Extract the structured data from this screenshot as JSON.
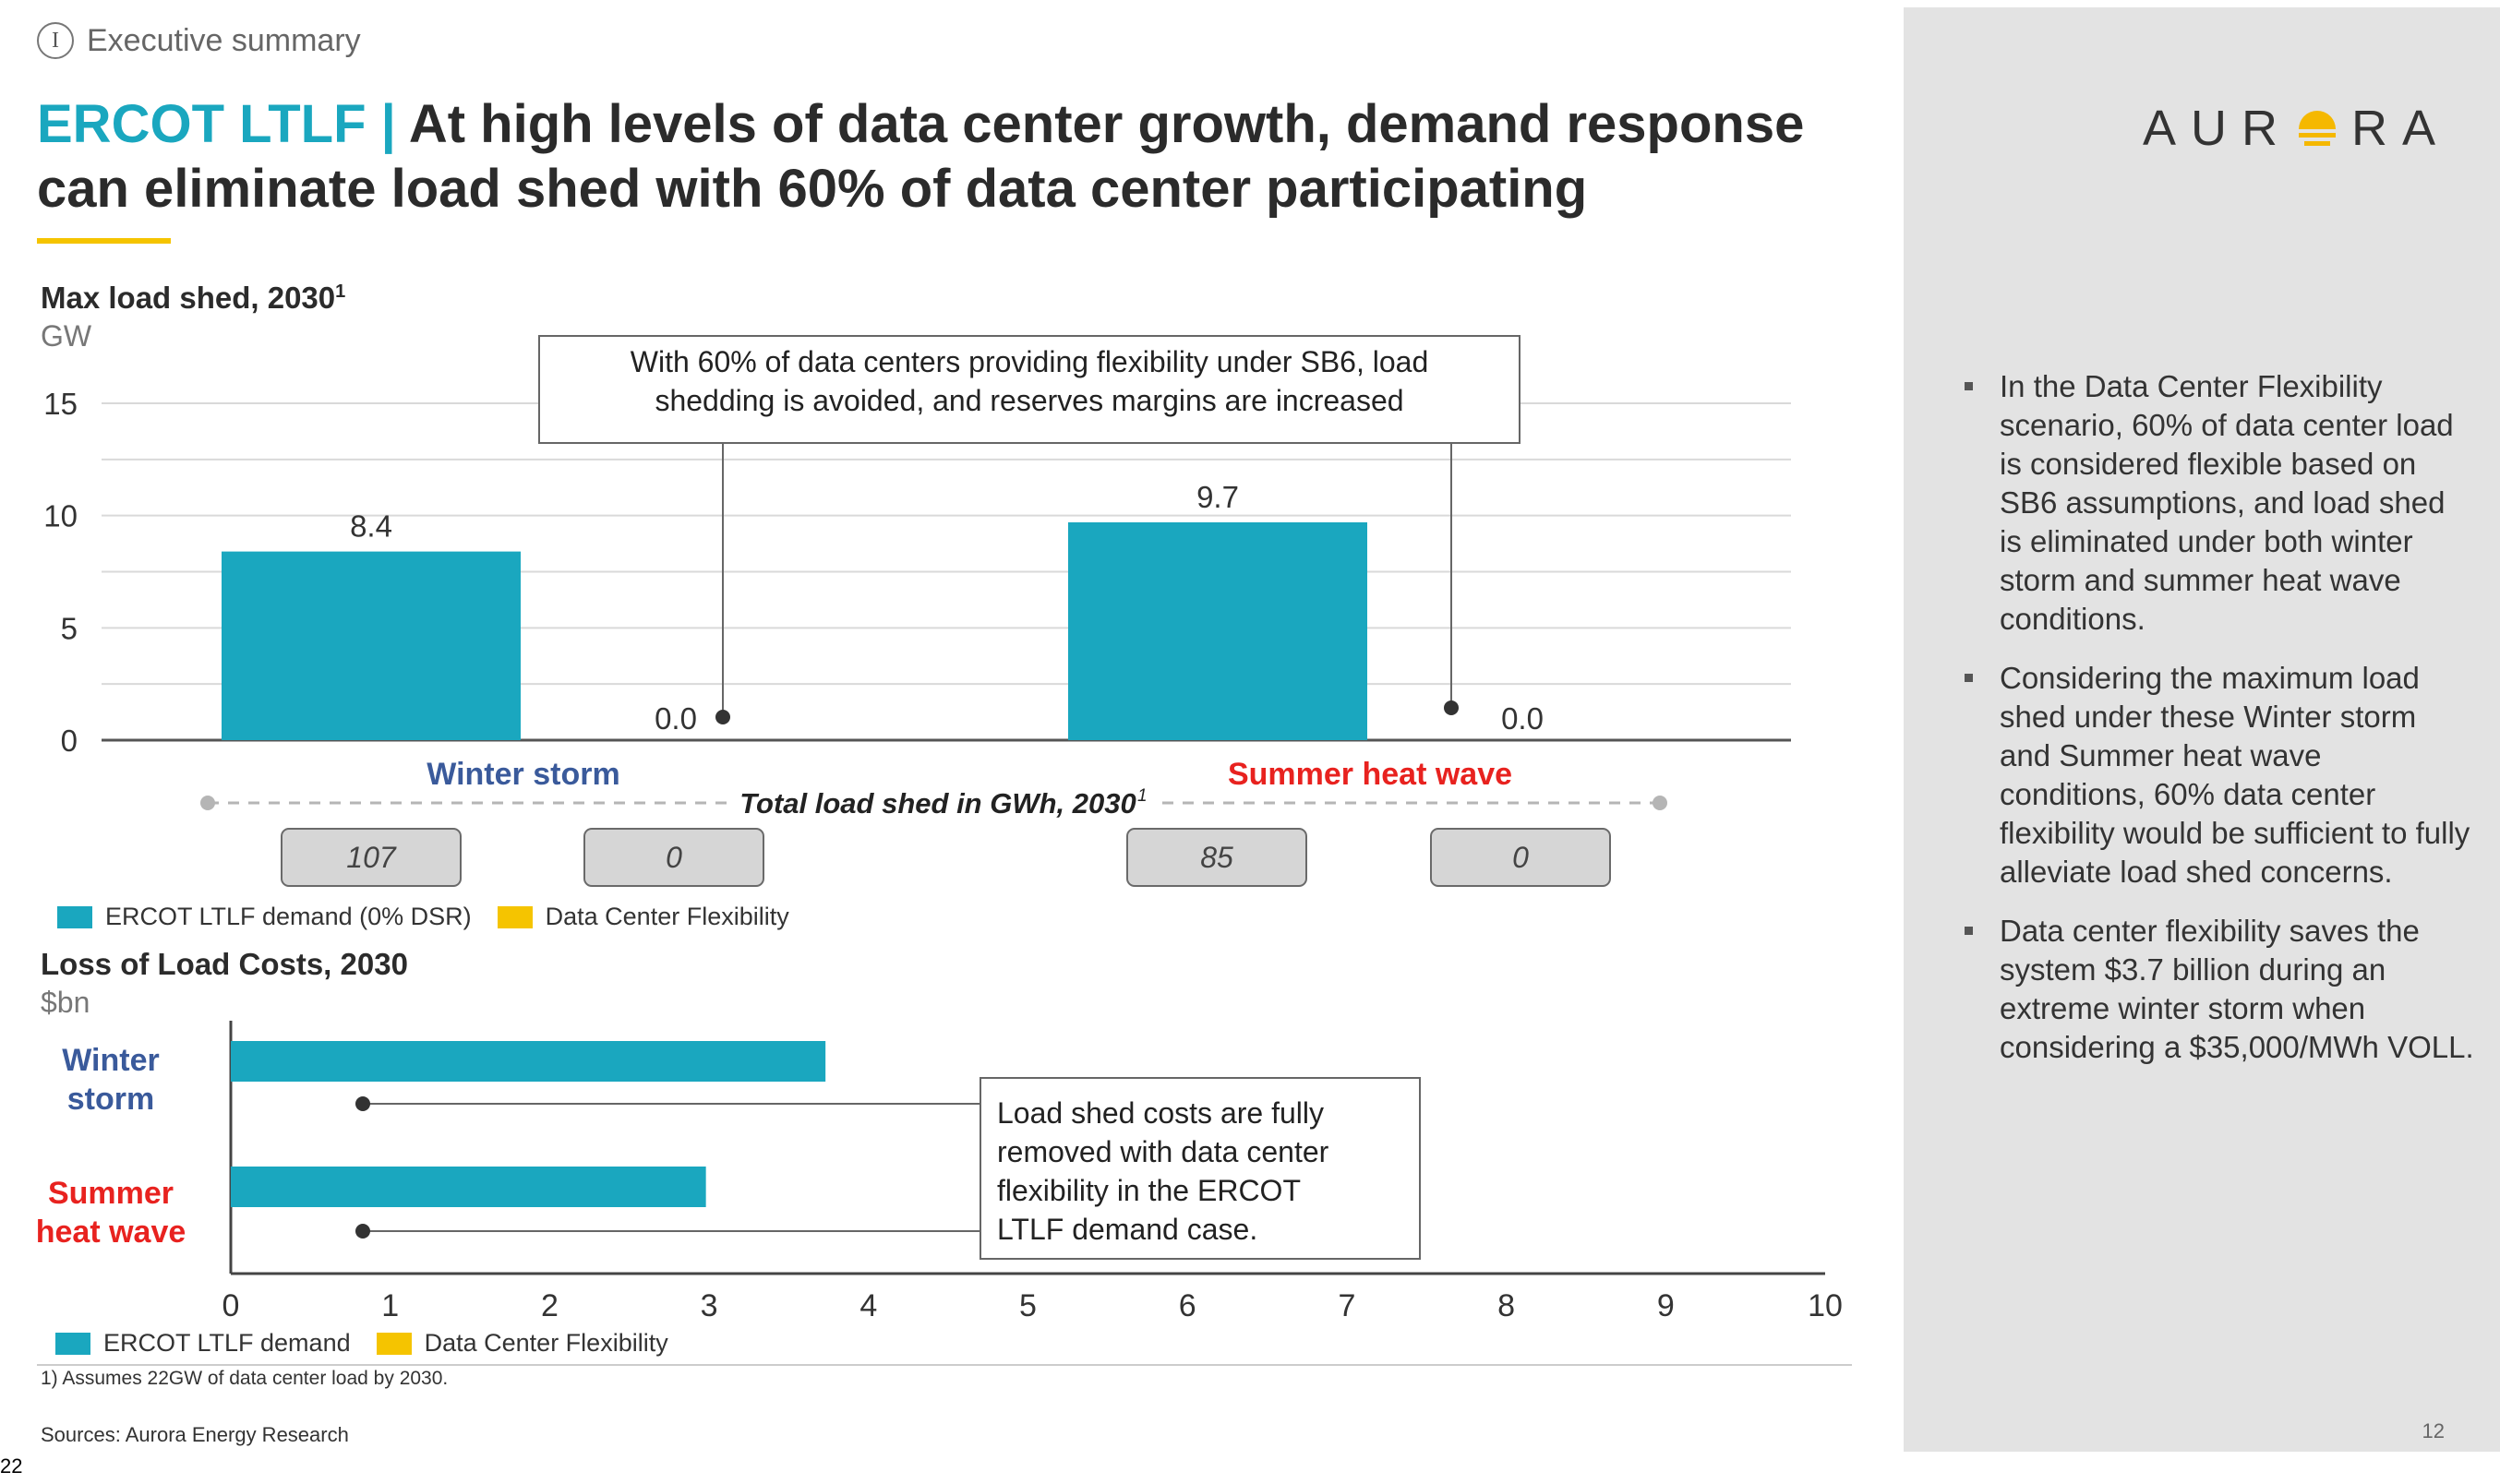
{
  "section": {
    "numeral": "I",
    "label": "Executive summary"
  },
  "title": {
    "accent": "ERCOT LTLF |",
    "text": " At high levels of data center growth, demand response can eliminate load shed with 60% of data center participating"
  },
  "logo": {
    "left": "AUR",
    "right": "RA"
  },
  "sidebar": {
    "bullets": [
      "In the Data Center Flexibility scenario, 60% of data center load is considered flexible based on SB6 assumptions, and load shed is eliminated under both winter storm and summer heat wave conditions.",
      "Considering the maximum load shed under these Winter storm and Summer heat wave conditions, 60% data center flexibility would be sufficient to fully alleviate load shed concerns.",
      "Data center flexibility saves the system $3.7 billion during an extreme winter storm when considering a $35,000/MWh VOLL."
    ],
    "page_number": "12"
  },
  "colors": {
    "teal": "#1aa7bf",
    "yellow": "#f5c400",
    "winter": "#3a5a9b",
    "summer": "#e8221f",
    "grid": "#d9d9d9"
  },
  "chart_data": [
    {
      "type": "bar",
      "title": "Max load shed, 2030",
      "title_sup": "1",
      "ylabel": "GW",
      "ylim": [
        0,
        15
      ],
      "yticks": [
        0,
        5,
        10,
        15
      ],
      "groups": [
        "Winter storm",
        "Summer heat wave"
      ],
      "series": [
        {
          "name": "ERCOT LTLF demand (0% DSR)",
          "values": [
            8.4,
            9.7
          ]
        },
        {
          "name": "Data Center Flexibility",
          "values": [
            0.0,
            0.0
          ]
        }
      ],
      "data_labels": [
        "8.4",
        "0.0",
        "9.7",
        "0.0"
      ],
      "callout": "With 60% of data centers providing flexibility under SB6, load shedding is avoided, and reserves margins are increased",
      "total_label": "Total load shed in GWh, 2030",
      "total_label_sup": "1",
      "totals": [
        "107",
        "0",
        "85",
        "0"
      ],
      "legend": [
        "ERCOT LTLF demand (0% DSR)",
        "Data Center Flexibility"
      ]
    },
    {
      "type": "bar",
      "orientation": "horizontal",
      "title": "Loss of Load Costs, 2030",
      "ylabel": "$bn",
      "xlim": [
        0,
        10
      ],
      "xticks": [
        0,
        1,
        2,
        3,
        4,
        5,
        6,
        7,
        8,
        9,
        10
      ],
      "categories": [
        "Winter storm",
        "Summer heat wave"
      ],
      "category_lines": [
        [
          "Winter",
          "storm"
        ],
        [
          "Summer",
          "heat wave"
        ]
      ],
      "series": [
        {
          "name": "ERCOT LTLF demand",
          "values": [
            3.73,
            2.98
          ]
        },
        {
          "name": "Data Center Flexibility",
          "values": [
            0,
            0
          ]
        }
      ],
      "callout": "Load shed costs are fully removed with data center flexibility in the ERCOT LTLF demand case.",
      "legend": [
        "ERCOT LTLF demand",
        "Data Center Flexibility"
      ]
    }
  ],
  "footnote": "1) Assumes 22GW of data center load by 2030.",
  "sources": "Sources: Aurora Energy Research",
  "slide_id": "22"
}
